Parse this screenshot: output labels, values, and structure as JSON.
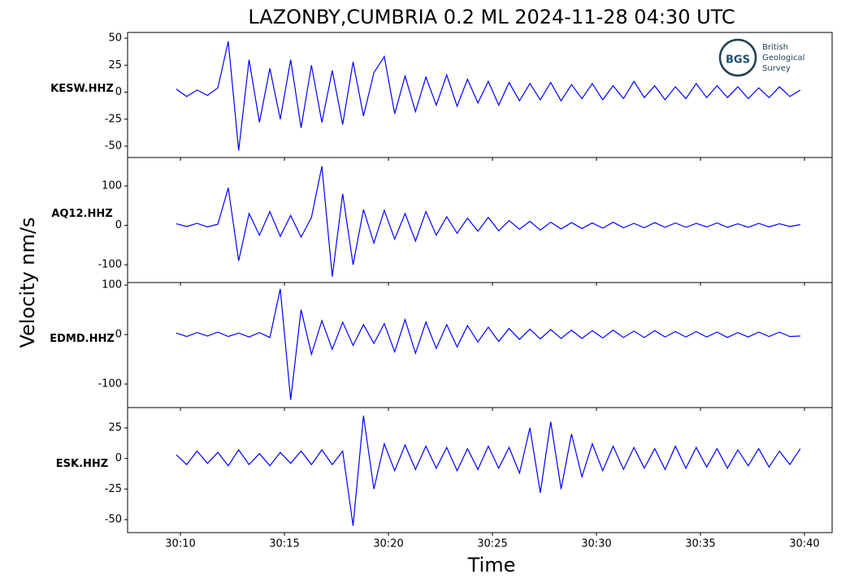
{
  "figure": {
    "title": "LAZONBY,CUMBRIA 0.2 ML   2024-11-28 04:30 UTC",
    "ylabel": "Velocity nm/s",
    "xlabel": "Time",
    "xlim": [
      7.46,
      41.33
    ],
    "xticks": [
      {
        "value": 10,
        "label": "30:10"
      },
      {
        "value": 15,
        "label": "30:15"
      },
      {
        "value": 20,
        "label": "30:20"
      },
      {
        "value": 25,
        "label": "30:25"
      },
      {
        "value": 30,
        "label": "30:30"
      },
      {
        "value": 35,
        "label": "30:35"
      },
      {
        "value": 40,
        "label": "30:40"
      }
    ],
    "logo": {
      "mark": "BGS",
      "lines": [
        "British",
        "Geological",
        "Survey"
      ]
    }
  },
  "chart_data": [
    {
      "type": "line",
      "label": "KESW.HHZ",
      "color": "#0000ff",
      "ylim": [
        -60.5,
        55.3
      ],
      "yticks": [
        -50,
        -25,
        0,
        25,
        50
      ],
      "x": [
        9.8,
        10.3,
        10.8,
        11.3,
        11.8,
        12.3,
        12.8,
        13.3,
        13.8,
        14.3,
        14.8,
        15.3,
        15.8,
        16.3,
        16.8,
        17.3,
        17.8,
        18.3,
        18.8,
        19.3,
        19.8,
        20.3,
        20.8,
        21.3,
        21.8,
        22.3,
        22.8,
        23.3,
        23.8,
        24.3,
        24.8,
        25.3,
        25.8,
        26.3,
        26.8,
        27.3,
        27.8,
        28.3,
        28.8,
        29.3,
        29.8,
        30.3,
        30.8,
        31.3,
        31.8,
        32.3,
        32.8,
        33.3,
        33.8,
        34.3,
        34.8,
        35.3,
        35.8,
        36.3,
        36.8,
        37.3,
        37.8,
        38.3,
        38.8,
        39.3,
        39.8
      ],
      "values": [
        3,
        -4,
        2,
        -3,
        4,
        47,
        -54,
        30,
        -28,
        22,
        -25,
        30,
        -33,
        25,
        -28,
        20,
        -30,
        28,
        -22,
        18,
        33,
        -20,
        15,
        -18,
        14,
        -12,
        16,
        -13,
        12,
        -10,
        10,
        -12,
        9,
        -8,
        8,
        -7,
        9,
        -8,
        7,
        -6,
        8,
        -7,
        6,
        -6,
        10,
        -5,
        6,
        -7,
        5,
        -6,
        8,
        -5,
        6,
        -5,
        5,
        -6,
        4,
        -5,
        5,
        -4,
        2
      ]
    },
    {
      "type": "line",
      "label": "AQ12.HHZ",
      "color": "#0000ff",
      "ylim": [
        -145,
        172
      ],
      "yticks": [
        -100,
        0,
        100
      ],
      "x": [
        9.8,
        10.3,
        10.8,
        11.3,
        11.8,
        12.3,
        12.8,
        13.3,
        13.8,
        14.3,
        14.8,
        15.3,
        15.8,
        16.3,
        16.8,
        17.3,
        17.8,
        18.3,
        18.8,
        19.3,
        19.8,
        20.3,
        20.8,
        21.3,
        21.8,
        22.3,
        22.8,
        23.3,
        23.8,
        24.3,
        24.8,
        25.3,
        25.8,
        26.3,
        26.8,
        27.3,
        27.8,
        28.3,
        28.8,
        29.3,
        29.8,
        30.3,
        30.8,
        31.3,
        31.8,
        32.3,
        32.8,
        33.3,
        33.8,
        34.3,
        34.8,
        35.3,
        35.8,
        36.3,
        36.8,
        37.3,
        37.8,
        38.3,
        38.8,
        39.3,
        39.8
      ],
      "values": [
        4,
        -3,
        5,
        -4,
        3,
        95,
        -90,
        30,
        -25,
        35,
        -28,
        25,
        -30,
        20,
        150,
        -130,
        80,
        -100,
        40,
        -45,
        38,
        -35,
        30,
        -40,
        35,
        -25,
        22,
        -20,
        18,
        -15,
        20,
        -14,
        12,
        -10,
        10,
        -12,
        8,
        -9,
        7,
        -8,
        6,
        -7,
        8,
        -6,
        5,
        -6,
        7,
        -5,
        6,
        -5,
        5,
        -4,
        6,
        -5,
        4,
        -5,
        5,
        -4,
        4,
        -3,
        2
      ]
    },
    {
      "type": "line",
      "label": "EDMD.HHZ",
      "color": "#0000ff",
      "ylim": [
        -147.5,
        105
      ],
      "yticks": [
        -100,
        0,
        100
      ],
      "x": [
        9.8,
        10.3,
        10.8,
        11.3,
        11.8,
        12.3,
        12.8,
        13.3,
        13.8,
        14.3,
        14.8,
        15.3,
        15.8,
        16.3,
        16.8,
        17.3,
        17.8,
        18.3,
        18.8,
        19.3,
        19.8,
        20.3,
        20.8,
        21.3,
        21.8,
        22.3,
        22.8,
        23.3,
        23.8,
        24.3,
        24.8,
        25.3,
        25.8,
        26.3,
        26.8,
        27.3,
        27.8,
        28.3,
        28.8,
        29.3,
        29.8,
        30.3,
        30.8,
        31.3,
        31.8,
        32.3,
        32.8,
        33.3,
        33.8,
        34.3,
        34.8,
        35.3,
        35.8,
        36.3,
        36.8,
        37.3,
        37.8,
        38.3,
        38.8,
        39.3,
        39.8
      ],
      "values": [
        3,
        -4,
        4,
        -3,
        5,
        -4,
        3,
        -5,
        4,
        -6,
        92,
        -132,
        50,
        -40,
        28,
        -30,
        25,
        -22,
        20,
        -18,
        22,
        -35,
        30,
        -38,
        25,
        -28,
        20,
        -25,
        18,
        -15,
        15,
        -14,
        12,
        -10,
        11,
        -9,
        10,
        -8,
        9,
        -8,
        8,
        -7,
        9,
        -6,
        7,
        -6,
        8,
        -5,
        6,
        -5,
        6,
        -5,
        5,
        -6,
        4,
        -5,
        5,
        -4,
        5,
        -4,
        -3
      ]
    },
    {
      "type": "line",
      "label": "ESK.HHZ",
      "color": "#0000ff",
      "ylim": [
        -60.6,
        41.6
      ],
      "yticks": [
        -50,
        -25,
        0,
        25
      ],
      "x": [
        9.8,
        10.3,
        10.8,
        11.3,
        11.8,
        12.3,
        12.8,
        13.3,
        13.8,
        14.3,
        14.8,
        15.3,
        15.8,
        16.3,
        16.8,
        17.3,
        17.8,
        18.3,
        18.8,
        19.3,
        19.8,
        20.3,
        20.8,
        21.3,
        21.8,
        22.3,
        22.8,
        23.3,
        23.8,
        24.3,
        24.8,
        25.3,
        25.8,
        26.3,
        26.8,
        27.3,
        27.8,
        28.3,
        28.8,
        29.3,
        29.8,
        30.3,
        30.8,
        31.3,
        31.8,
        32.3,
        32.8,
        33.3,
        33.8,
        34.3,
        34.8,
        35.3,
        35.8,
        36.3,
        36.8,
        37.3,
        37.8,
        38.3,
        38.8,
        39.3,
        39.8
      ],
      "values": [
        3,
        -5,
        6,
        -4,
        5,
        -6,
        7,
        -5,
        4,
        -6,
        5,
        -4,
        6,
        -5,
        7,
        -5,
        6,
        -55,
        35,
        -25,
        12,
        -10,
        11,
        -9,
        10,
        -8,
        9,
        -10,
        8,
        -9,
        10,
        -8,
        9,
        -12,
        25,
        -28,
        30,
        -25,
        20,
        -15,
        12,
        -10,
        10,
        -9,
        9,
        -8,
        8,
        -9,
        10,
        -8,
        9,
        -7,
        8,
        -8,
        7,
        -6,
        8,
        -7,
        6,
        -5,
        8
      ]
    }
  ]
}
